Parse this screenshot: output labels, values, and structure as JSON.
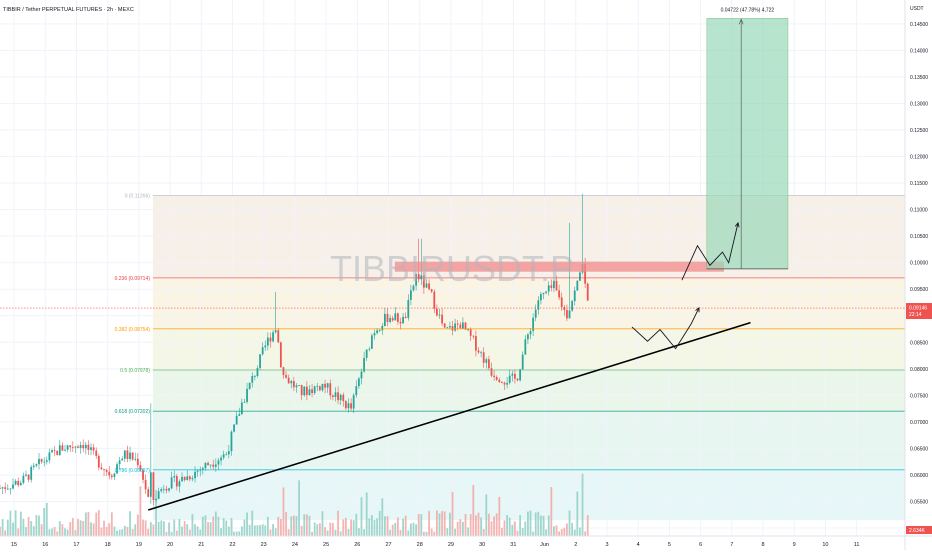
{
  "header": {
    "title": "TIBBIR / Tether PERPETUAL FUTURES · 2h · MEXC"
  },
  "watermark": "TIBBIRUSDT.P",
  "axis": {
    "currency": "USDT"
  },
  "price_badges": {
    "last_price": "0.09146",
    "countdown": "22:14",
    "volume": "2.634K",
    "last_price_color": "#ef5350",
    "volume_color": "#ef5350"
  },
  "chart_data": {
    "type": "candlestick",
    "title": "TIBBIR / Tether PERPETUAL FUTURES · 2h · MEXC",
    "y_axis_ticks": [
      "0.14500",
      "0.14000",
      "0.13500",
      "0.13000",
      "0.12500",
      "0.12000",
      "0.11500",
      "0.11000",
      "0.10500",
      "0.10000",
      "0.09500",
      "0.09000",
      "0.08500",
      "0.08000",
      "0.07500",
      "0.07000",
      "0.06500",
      "0.06000",
      "0.05500",
      "0.05000"
    ],
    "y_tick_values": [
      0.145,
      0.14,
      0.135,
      0.13,
      0.125,
      0.12,
      0.115,
      0.11,
      0.105,
      0.1,
      0.095,
      0.09,
      0.085,
      0.08,
      0.075,
      0.07,
      0.065,
      0.06,
      0.055,
      0.05
    ],
    "ylim": [
      0.0485,
      0.1495
    ],
    "x_axis_ticks": [
      "15",
      "16",
      "17",
      "18",
      "19",
      "20",
      "21",
      "22",
      "23",
      "24",
      "25",
      "26",
      "27",
      "28",
      "29",
      "30",
      "31",
      "Jun",
      "2",
      "3",
      "4",
      "5",
      "6",
      "7",
      "8",
      "9",
      "10",
      "11"
    ],
    "x_tick_days": [
      15,
      16,
      17,
      18,
      19,
      20,
      21,
      22,
      23,
      24,
      25,
      26,
      27,
      28,
      29,
      30,
      31,
      32,
      33,
      34,
      35,
      36,
      37,
      38,
      39,
      40,
      41,
      42
    ],
    "xlim_days": [
      14.55,
      43.55
    ],
    "fib_levels": [
      {
        "label": "0 (0.11266)",
        "value": 0.11266,
        "color": "#b2b5be"
      },
      {
        "label": "0.236 (0.09714)",
        "value": 0.09714,
        "color": "#f23645"
      },
      {
        "label": "0.382 (0.08754)",
        "value": 0.08754,
        "color": "#ff9800"
      },
      {
        "label": "0.5 (0.07978)",
        "value": 0.07978,
        "color": "#4caf50"
      },
      {
        "label": "0.618 (0.07202)",
        "value": 0.07202,
        "color": "#089981"
      },
      {
        "label": "0.786 (0.06097)",
        "value": 0.06097,
        "color": "#00bcd4"
      }
    ],
    "last_price": 0.09146,
    "position_tool": {
      "label": "0.04722 (47.78%) 4,722",
      "entry": 0.09884,
      "target": 0.14606,
      "start_day": 37.2,
      "end_day": 39.8
    },
    "resistance_zone": {
      "low": 0.0983,
      "high": 0.1002
    },
    "trendline": [
      {
        "day": 19.3,
        "price": 0.0534
      },
      {
        "day": 38.6,
        "price": 0.0887
      }
    ],
    "projected_paths": [
      [
        {
          "day": 34.8,
          "price": 0.0879
        },
        {
          "day": 35.3,
          "price": 0.0852
        },
        {
          "day": 35.7,
          "price": 0.0874
        },
        {
          "day": 36.2,
          "price": 0.0838
        },
        {
          "day": 36.7,
          "price": 0.0885
        },
        {
          "day": 36.95,
          "price": 0.0915
        }
      ],
      [
        {
          "day": 36.4,
          "price": 0.0967
        },
        {
          "day": 36.9,
          "price": 0.1032
        },
        {
          "day": 37.3,
          "price": 0.0995
        },
        {
          "day": 37.7,
          "price": 0.102
        },
        {
          "day": 37.9,
          "price": 0.1
        },
        {
          "day": 38.2,
          "price": 0.1075
        }
      ]
    ],
    "colors": {
      "up": "#26a69a",
      "down": "#ef5350",
      "profit_zone": "#9ad9b8",
      "resistance": "#f28a8a",
      "trendline": "#000000"
    }
  }
}
